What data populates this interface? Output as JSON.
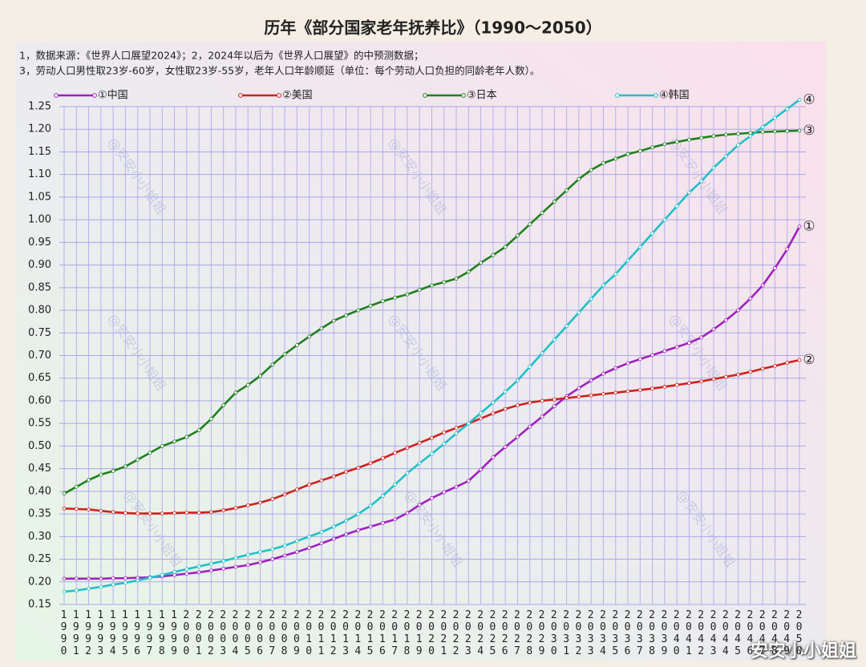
{
  "chart_data": {
    "type": "line",
    "title": "历年《部分国家老年抚养比》（1990～2050）",
    "notes": [
      "1，数据来源：《世界人口展望2024》；2，2024年以后为《世界人口展望》的中预测数据；",
      "3，劳动人口男性取23岁-60岁，女性取23岁-55岁，老年人口年龄顺延（单位：每个劳动人口负担的同龄老年人数）。"
    ],
    "watermark": "@安安小小姐姐",
    "corner_watermark": "安安小小姐姐",
    "categories": [
      "1990",
      "1991",
      "1992",
      "1993",
      "1994",
      "1995",
      "1996",
      "1997",
      "1998",
      "1999",
      "2000",
      "2001",
      "2002",
      "2003",
      "2004",
      "2005",
      "2006",
      "2007",
      "2008",
      "2009",
      "2010",
      "2011",
      "2012",
      "2013",
      "2014",
      "2015",
      "2016",
      "2017",
      "2018",
      "2019",
      "2020",
      "2021",
      "2022",
      "2023",
      "2024",
      "2025",
      "2026",
      "2027",
      "2028",
      "2029",
      "2030",
      "2031",
      "2032",
      "2033",
      "2034",
      "2035",
      "2036",
      "2037",
      "2038",
      "2039",
      "2040",
      "2041",
      "2042",
      "2043",
      "2044",
      "2045",
      "2046",
      "2047",
      "2048",
      "2049",
      "2050"
    ],
    "series": [
      {
        "name": "①中国",
        "end_label": "①",
        "color": "#a020c0",
        "values": [
          0.207,
          0.207,
          0.207,
          0.207,
          0.208,
          0.208,
          0.209,
          0.21,
          0.212,
          0.215,
          0.218,
          0.221,
          0.225,
          0.229,
          0.233,
          0.237,
          0.243,
          0.25,
          0.258,
          0.266,
          0.275,
          0.285,
          0.295,
          0.305,
          0.314,
          0.322,
          0.33,
          0.338,
          0.352,
          0.37,
          0.385,
          0.398,
          0.41,
          0.423,
          0.448,
          0.475,
          0.498,
          0.52,
          0.543,
          0.565,
          0.588,
          0.61,
          0.628,
          0.645,
          0.66,
          0.672,
          0.683,
          0.692,
          0.701,
          0.71,
          0.719,
          0.728,
          0.74,
          0.758,
          0.778,
          0.8,
          0.826,
          0.855,
          0.893,
          0.935,
          0.985
        ]
      },
      {
        "name": "②美国",
        "end_label": "②",
        "color": "#d02020",
        "values": [
          0.362,
          0.361,
          0.36,
          0.357,
          0.354,
          0.352,
          0.351,
          0.351,
          0.351,
          0.352,
          0.353,
          0.353,
          0.354,
          0.358,
          0.363,
          0.369,
          0.375,
          0.383,
          0.393,
          0.404,
          0.415,
          0.424,
          0.433,
          0.443,
          0.452,
          0.462,
          0.473,
          0.485,
          0.496,
          0.507,
          0.518,
          0.53,
          0.54,
          0.55,
          0.561,
          0.572,
          0.582,
          0.59,
          0.596,
          0.6,
          0.603,
          0.606,
          0.609,
          0.612,
          0.615,
          0.618,
          0.621,
          0.624,
          0.627,
          0.631,
          0.635,
          0.639,
          0.643,
          0.648,
          0.653,
          0.658,
          0.664,
          0.671,
          0.677,
          0.684,
          0.69
        ]
      },
      {
        "name": "③日本",
        "end_label": "③",
        "color": "#208020",
        "values": [
          0.395,
          0.41,
          0.425,
          0.437,
          0.445,
          0.455,
          0.47,
          0.485,
          0.5,
          0.51,
          0.52,
          0.535,
          0.56,
          0.59,
          0.618,
          0.635,
          0.655,
          0.68,
          0.703,
          0.723,
          0.742,
          0.76,
          0.777,
          0.789,
          0.8,
          0.81,
          0.82,
          0.828,
          0.835,
          0.845,
          0.855,
          0.862,
          0.87,
          0.885,
          0.905,
          0.922,
          0.94,
          0.965,
          0.99,
          1.015,
          1.04,
          1.065,
          1.09,
          1.11,
          1.125,
          1.135,
          1.145,
          1.152,
          1.16,
          1.167,
          1.172,
          1.177,
          1.181,
          1.185,
          1.188,
          1.19,
          1.192,
          1.194,
          1.195,
          1.196,
          1.197
        ]
      },
      {
        "name": "④韩国",
        "end_label": "④",
        "color": "#20c0c8",
        "values": [
          0.178,
          0.181,
          0.185,
          0.189,
          0.194,
          0.198,
          0.203,
          0.209,
          0.215,
          0.222,
          0.228,
          0.234,
          0.24,
          0.246,
          0.253,
          0.26,
          0.266,
          0.272,
          0.28,
          0.29,
          0.3,
          0.31,
          0.322,
          0.335,
          0.35,
          0.368,
          0.39,
          0.415,
          0.44,
          0.462,
          0.483,
          0.505,
          0.528,
          0.55,
          0.573,
          0.596,
          0.62,
          0.645,
          0.675,
          0.705,
          0.735,
          0.765,
          0.795,
          0.825,
          0.855,
          0.88,
          0.91,
          0.94,
          0.97,
          1.0,
          1.03,
          1.06,
          1.085,
          1.115,
          1.14,
          1.165,
          1.185,
          1.205,
          1.225,
          1.245,
          1.265
        ]
      }
    ],
    "ylim": [
      0.15,
      1.25
    ],
    "yticks": [
      0.15,
      {
        "value": 0.2,
        "label": "0.20"
      },
      0.25,
      {
        "value": 0.3,
        "label": "0.30"
      },
      0.35,
      {
        "value": 0.4,
        "label": "0.40"
      },
      0.45,
      {
        "value": 0.5,
        "label": "0.50"
      },
      0.55,
      {
        "value": 0.6,
        "label": "0.60"
      },
      0.65,
      {
        "value": 0.7,
        "label": "0.70"
      },
      0.75,
      {
        "value": 0.8,
        "label": "0.80"
      },
      0.85,
      {
        "value": 0.9,
        "label": "0.90"
      },
      0.95,
      {
        "value": 1,
        "label": "1.00"
      },
      1.05,
      {
        "value": 1.1,
        "label": "1.10"
      },
      1.15,
      {
        "value": 1.2,
        "label": "1.20"
      },
      1.25
    ],
    "grid": true,
    "legend": "top"
  }
}
